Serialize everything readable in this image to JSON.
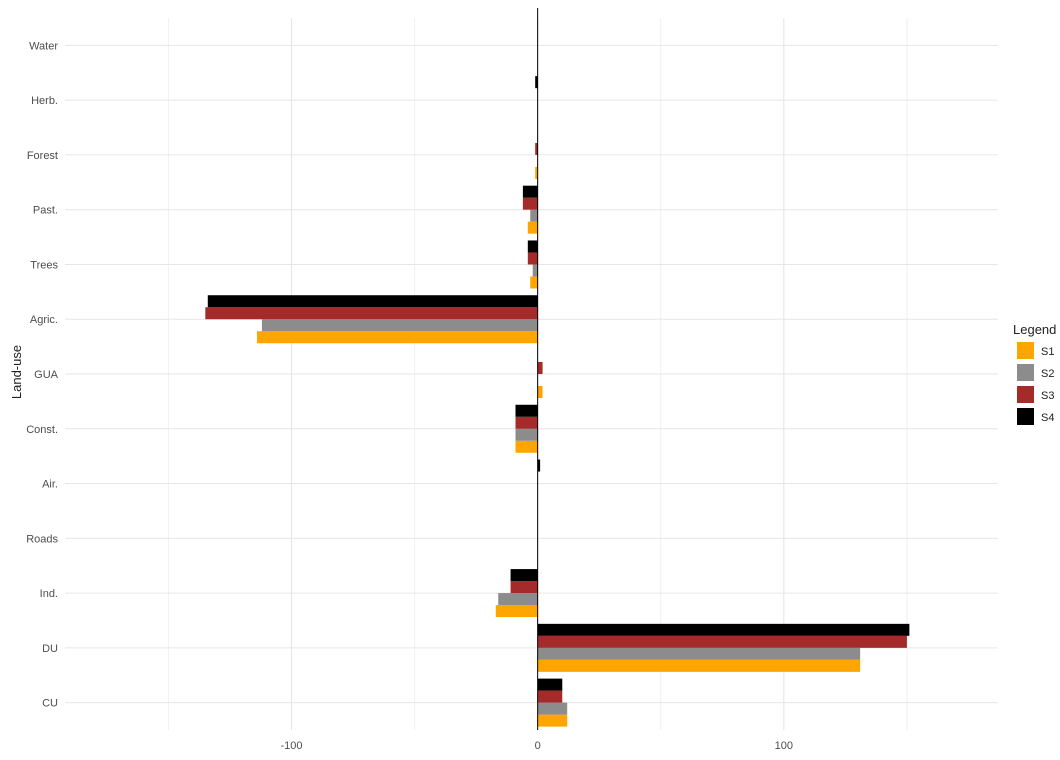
{
  "chart_data": {
    "type": "bar",
    "orientation": "horizontal",
    "title": "",
    "xlabel": "",
    "ylabel": "Land-use",
    "categories": [
      "Water",
      "Herb.",
      "Forest",
      "Past.",
      "Trees",
      "Agric.",
      "GUA",
      "Const.",
      "Air.",
      "Roads",
      "Ind.",
      "DU",
      "CU"
    ],
    "series": [
      {
        "name": "S1",
        "color": "#FFA500",
        "values": [
          0,
          0,
          -1,
          -4,
          -3,
          -114,
          2,
          -9,
          0,
          0,
          -17,
          131,
          12
        ]
      },
      {
        "name": "S2",
        "color": "#8C8C8C",
        "values": [
          0,
          0,
          0,
          -3,
          -2,
          -112,
          0,
          -9,
          0,
          0,
          -16,
          131,
          12
        ]
      },
      {
        "name": "S3",
        "color": "#A52A2A",
        "values": [
          0,
          0,
          -1,
          -6,
          -4,
          -135,
          2,
          -9,
          0,
          0,
          -11,
          150,
          10
        ]
      },
      {
        "name": "S4",
        "color": "#000000",
        "values": [
          0,
          -1,
          0,
          -6,
          -4,
          -134,
          0,
          -9,
          1,
          0,
          -11,
          151,
          10
        ]
      }
    ],
    "xlim": [
      -192,
      187
    ],
    "xticks": [
      -100,
      0,
      100
    ],
    "grid": true,
    "legend": {
      "title": "Legend",
      "position": "right"
    }
  }
}
